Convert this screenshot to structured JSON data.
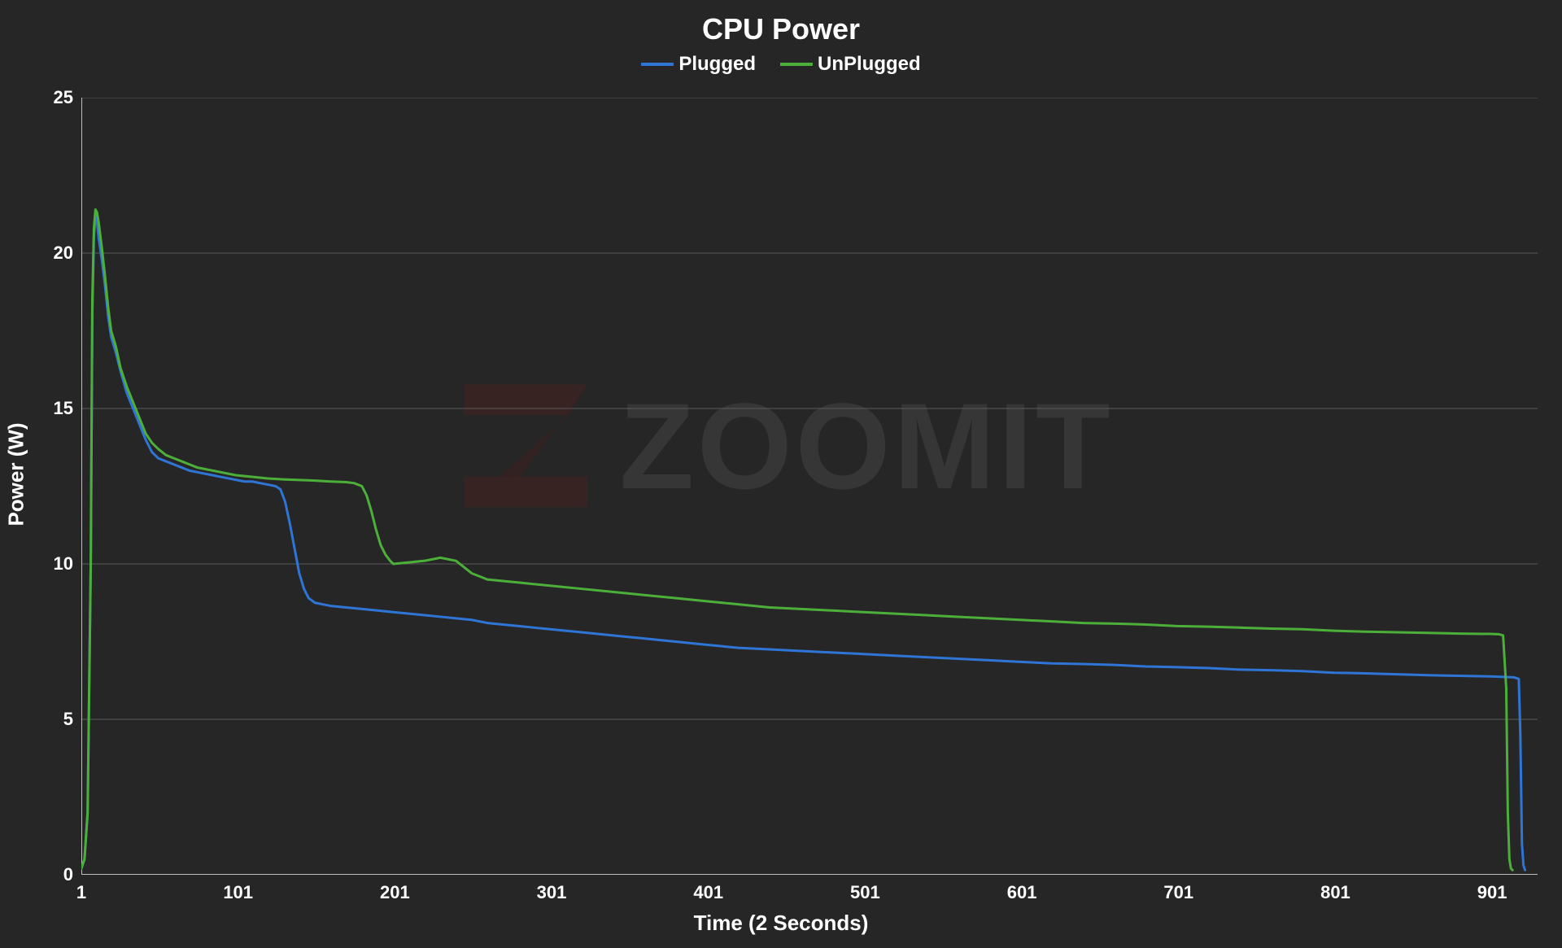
{
  "chart": {
    "title": "CPU Power",
    "type": "line",
    "xlabel": "Time (2 Seconds)",
    "ylabel": "Power (W)",
    "background_color": "#262626",
    "text_color": "#ffffff",
    "title_fontsize": 36,
    "label_fontsize": 26,
    "tick_fontsize": 22,
    "grid_color": "#595959",
    "grid_width": 1,
    "axis_color": "#bfbfbf",
    "axis_width": 2,
    "xlim": [
      1,
      930
    ],
    "ylim": [
      0,
      25
    ],
    "xticks": [
      1,
      101,
      201,
      301,
      401,
      501,
      601,
      701,
      801,
      901
    ],
    "yticks": [
      0,
      5,
      10,
      15,
      20,
      25
    ],
    "line_width": 3,
    "legend": {
      "position": "top-center",
      "fontsize": 24,
      "items": [
        {
          "label": "Plugged",
          "color": "#2e75d6"
        },
        {
          "label": "UnPlugged",
          "color": "#4caf3a"
        }
      ]
    },
    "series": [
      {
        "name": "Plugged",
        "color": "#2e75d6",
        "data": [
          [
            1,
            0.2
          ],
          [
            3,
            0.5
          ],
          [
            5,
            2
          ],
          [
            7,
            10
          ],
          [
            8,
            18
          ],
          [
            9,
            20.5
          ],
          [
            10,
            21.2
          ],
          [
            11,
            21.0
          ],
          [
            12,
            20.5
          ],
          [
            14,
            19.8
          ],
          [
            16,
            19.0
          ],
          [
            18,
            18.0
          ],
          [
            20,
            17.3
          ],
          [
            23,
            16.8
          ],
          [
            26,
            16.2
          ],
          [
            30,
            15.5
          ],
          [
            34,
            15.0
          ],
          [
            38,
            14.5
          ],
          [
            42,
            14.0
          ],
          [
            46,
            13.6
          ],
          [
            50,
            13.4
          ],
          [
            55,
            13.3
          ],
          [
            60,
            13.2
          ],
          [
            65,
            13.1
          ],
          [
            70,
            13.0
          ],
          [
            75,
            12.95
          ],
          [
            80,
            12.9
          ],
          [
            85,
            12.85
          ],
          [
            90,
            12.8
          ],
          [
            95,
            12.75
          ],
          [
            100,
            12.7
          ],
          [
            105,
            12.65
          ],
          [
            110,
            12.65
          ],
          [
            115,
            12.6
          ],
          [
            120,
            12.55
          ],
          [
            125,
            12.5
          ],
          [
            128,
            12.4
          ],
          [
            131,
            12.0
          ],
          [
            134,
            11.3
          ],
          [
            137,
            10.5
          ],
          [
            140,
            9.7
          ],
          [
            143,
            9.2
          ],
          [
            146,
            8.9
          ],
          [
            150,
            8.75
          ],
          [
            155,
            8.7
          ],
          [
            160,
            8.65
          ],
          [
            170,
            8.6
          ],
          [
            180,
            8.55
          ],
          [
            190,
            8.5
          ],
          [
            200,
            8.45
          ],
          [
            210,
            8.4
          ],
          [
            220,
            8.35
          ],
          [
            230,
            8.3
          ],
          [
            240,
            8.25
          ],
          [
            250,
            8.2
          ],
          [
            260,
            8.1
          ],
          [
            270,
            8.05
          ],
          [
            280,
            8.0
          ],
          [
            290,
            7.95
          ],
          [
            300,
            7.9
          ],
          [
            320,
            7.8
          ],
          [
            340,
            7.7
          ],
          [
            360,
            7.6
          ],
          [
            380,
            7.5
          ],
          [
            400,
            7.4
          ],
          [
            420,
            7.3
          ],
          [
            440,
            7.25
          ],
          [
            460,
            7.2
          ],
          [
            480,
            7.15
          ],
          [
            500,
            7.1
          ],
          [
            520,
            7.05
          ],
          [
            540,
            7.0
          ],
          [
            560,
            6.95
          ],
          [
            580,
            6.9
          ],
          [
            600,
            6.85
          ],
          [
            620,
            6.8
          ],
          [
            640,
            6.78
          ],
          [
            660,
            6.75
          ],
          [
            680,
            6.7
          ],
          [
            700,
            6.68
          ],
          [
            720,
            6.65
          ],
          [
            740,
            6.6
          ],
          [
            760,
            6.58
          ],
          [
            780,
            6.55
          ],
          [
            800,
            6.5
          ],
          [
            820,
            6.48
          ],
          [
            840,
            6.45
          ],
          [
            860,
            6.42
          ],
          [
            880,
            6.4
          ],
          [
            900,
            6.38
          ],
          [
            910,
            6.36
          ],
          [
            915,
            6.35
          ],
          [
            918,
            6.3
          ],
          [
            919,
            4.5
          ],
          [
            920,
            1.0
          ],
          [
            921,
            0.3
          ],
          [
            922,
            0.15
          ]
        ]
      },
      {
        "name": "UnPlugged",
        "color": "#4caf3a",
        "data": [
          [
            1,
            0.2
          ],
          [
            3,
            0.5
          ],
          [
            5,
            2
          ],
          [
            7,
            10
          ],
          [
            8,
            18.5
          ],
          [
            9,
            20.8
          ],
          [
            10,
            21.4
          ],
          [
            11,
            21.3
          ],
          [
            12,
            21.0
          ],
          [
            14,
            20.2
          ],
          [
            16,
            19.3
          ],
          [
            18,
            18.3
          ],
          [
            20,
            17.5
          ],
          [
            23,
            17.0
          ],
          [
            26,
            16.3
          ],
          [
            30,
            15.7
          ],
          [
            34,
            15.2
          ],
          [
            38,
            14.7
          ],
          [
            42,
            14.2
          ],
          [
            46,
            13.9
          ],
          [
            50,
            13.7
          ],
          [
            55,
            13.5
          ],
          [
            60,
            13.4
          ],
          [
            65,
            13.3
          ],
          [
            70,
            13.2
          ],
          [
            75,
            13.1
          ],
          [
            80,
            13.05
          ],
          [
            85,
            13.0
          ],
          [
            90,
            12.95
          ],
          [
            95,
            12.9
          ],
          [
            100,
            12.85
          ],
          [
            110,
            12.8
          ],
          [
            120,
            12.75
          ],
          [
            130,
            12.72
          ],
          [
            140,
            12.7
          ],
          [
            150,
            12.68
          ],
          [
            160,
            12.65
          ],
          [
            170,
            12.63
          ],
          [
            175,
            12.6
          ],
          [
            180,
            12.5
          ],
          [
            183,
            12.2
          ],
          [
            186,
            11.7
          ],
          [
            189,
            11.1
          ],
          [
            192,
            10.6
          ],
          [
            195,
            10.3
          ],
          [
            198,
            10.1
          ],
          [
            200,
            10.0
          ],
          [
            210,
            10.05
          ],
          [
            220,
            10.1
          ],
          [
            230,
            10.2
          ],
          [
            240,
            10.1
          ],
          [
            245,
            9.9
          ],
          [
            250,
            9.7
          ],
          [
            255,
            9.6
          ],
          [
            260,
            9.5
          ],
          [
            270,
            9.45
          ],
          [
            280,
            9.4
          ],
          [
            290,
            9.35
          ],
          [
            300,
            9.3
          ],
          [
            320,
            9.2
          ],
          [
            340,
            9.1
          ],
          [
            360,
            9.0
          ],
          [
            380,
            8.9
          ],
          [
            400,
            8.8
          ],
          [
            420,
            8.7
          ],
          [
            440,
            8.6
          ],
          [
            460,
            8.55
          ],
          [
            480,
            8.5
          ],
          [
            500,
            8.45
          ],
          [
            520,
            8.4
          ],
          [
            540,
            8.35
          ],
          [
            560,
            8.3
          ],
          [
            580,
            8.25
          ],
          [
            600,
            8.2
          ],
          [
            620,
            8.15
          ],
          [
            640,
            8.1
          ],
          [
            660,
            8.08
          ],
          [
            680,
            8.05
          ],
          [
            700,
            8.0
          ],
          [
            720,
            7.98
          ],
          [
            740,
            7.95
          ],
          [
            760,
            7.92
          ],
          [
            780,
            7.9
          ],
          [
            800,
            7.85
          ],
          [
            820,
            7.82
          ],
          [
            840,
            7.8
          ],
          [
            860,
            7.78
          ],
          [
            880,
            7.76
          ],
          [
            895,
            7.75
          ],
          [
            900,
            7.75
          ],
          [
            905,
            7.74
          ],
          [
            908,
            7.7
          ],
          [
            910,
            6.0
          ],
          [
            911,
            2.0
          ],
          [
            912,
            0.5
          ],
          [
            913,
            0.2
          ],
          [
            914,
            0.15
          ]
        ]
      }
    ],
    "watermark": {
      "text": "ZOOMIT",
      "logo_color": "#8b1a1a",
      "text_color": "#808080",
      "opacity": 0.18
    }
  }
}
